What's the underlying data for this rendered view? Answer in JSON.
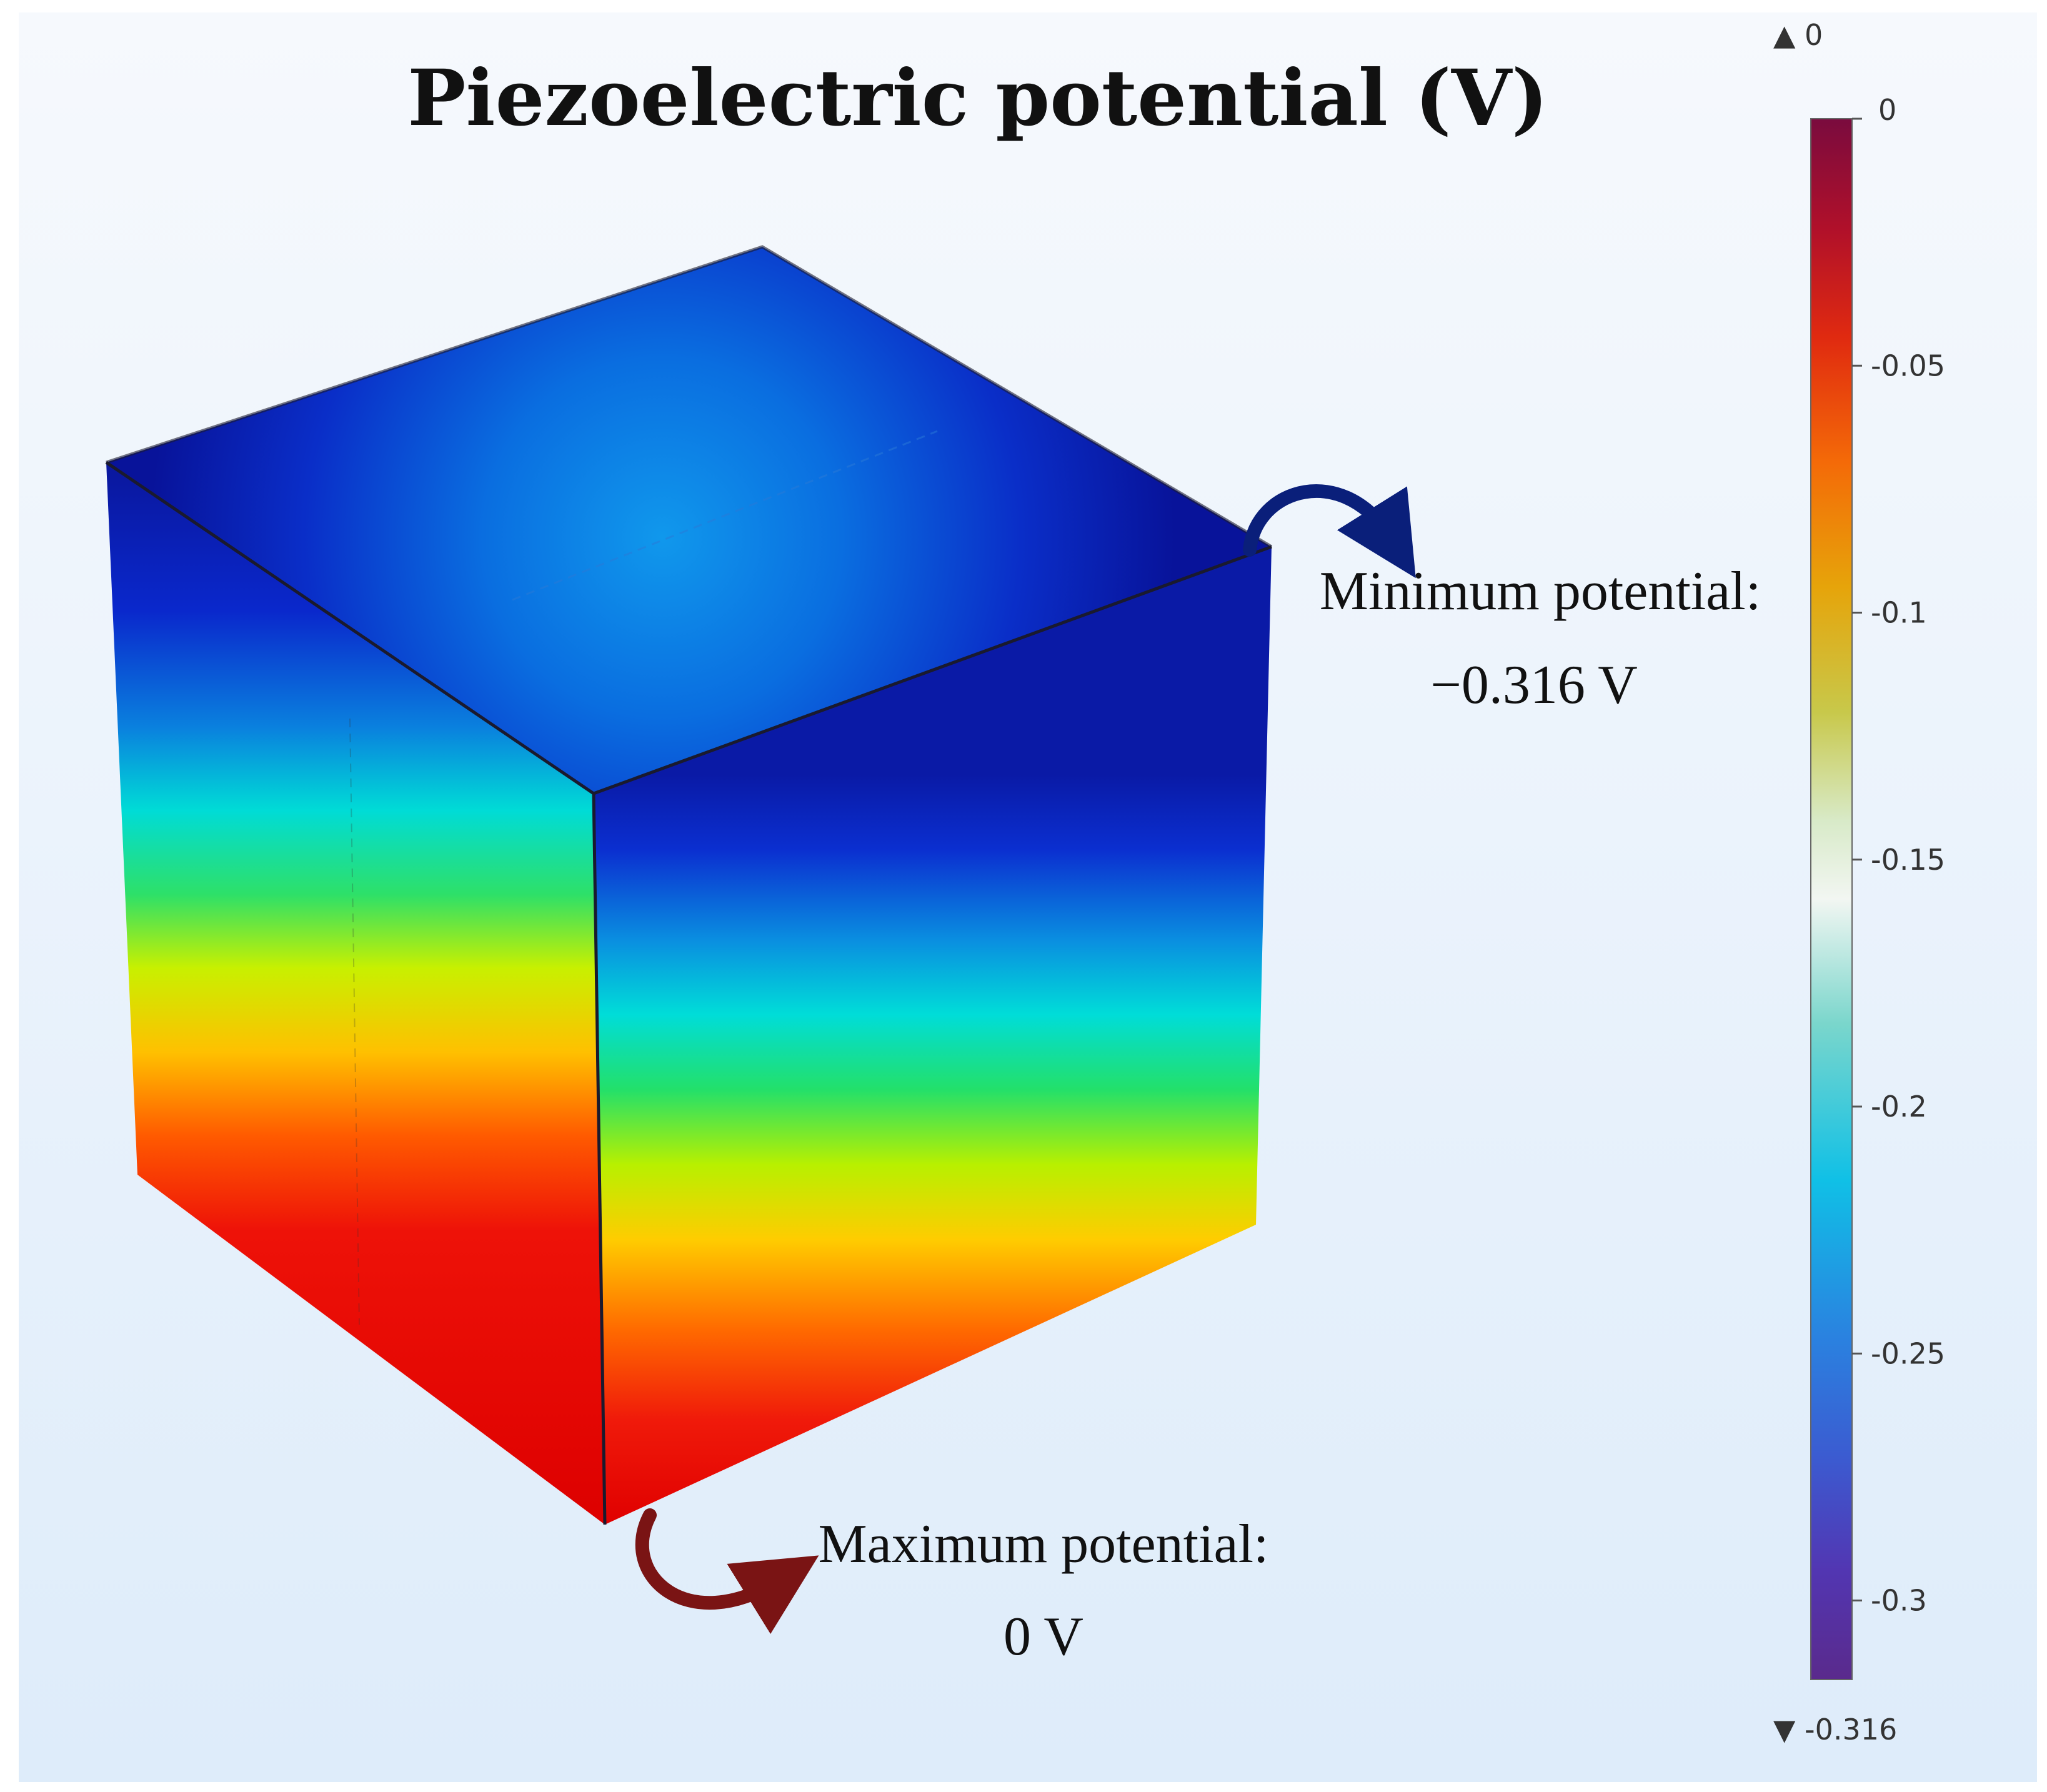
{
  "title": "Piezoelectric potential (V)",
  "annotations": {
    "minimum": {
      "label": "Minimum potential:",
      "value": "−0.316 V"
    },
    "maximum": {
      "label": "Maximum potential:",
      "value": "0 V"
    }
  },
  "colorbar": {
    "top_marker": "▲ 0",
    "bottom_marker": "▼ -0.316",
    "range": [
      -0.316,
      0
    ],
    "ticks": [
      {
        "value": 0,
        "label": "0"
      },
      {
        "value": -0.05,
        "label": "-0.05"
      },
      {
        "value": -0.1,
        "label": "-0.1"
      },
      {
        "value": -0.15,
        "label": "-0.15"
      },
      {
        "value": -0.2,
        "label": "-0.2"
      },
      {
        "value": -0.25,
        "label": "-0.25"
      },
      {
        "value": -0.3,
        "label": "-0.3"
      }
    ]
  },
  "colors": {
    "background_top": "#f6f9fd",
    "background_bottom": "#deecfa",
    "min_arrow": "#0a1f7a",
    "max_arrow": "#7a1414",
    "edge": "#1a1a2e"
  },
  "icons": {
    "min_arrow": "curved-arrow-icon",
    "max_arrow": "curved-arrow-icon"
  }
}
